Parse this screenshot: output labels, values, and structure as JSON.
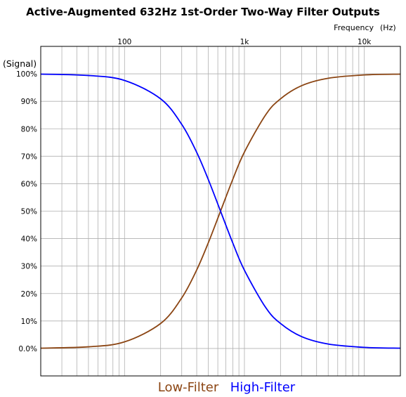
{
  "chart_data": {
    "type": "line",
    "title": "Active-Augmented 632Hz 1st-Order Two-Way Filter Outputs",
    "xlabel": "Frequency",
    "xunit": "(Hz)",
    "ylabel": "(Signal)",
    "xscale": "log",
    "xlim": [
      20,
      20000
    ],
    "ylim": [
      -10,
      110
    ],
    "x_ticks": [
      100,
      1000,
      10000
    ],
    "x_tick_labels": [
      "100",
      "1k",
      "10k"
    ],
    "y_ticks": [
      0,
      10,
      20,
      30,
      40,
      50,
      60,
      70,
      80,
      90,
      100
    ],
    "y_tick_labels": [
      "0.0%",
      "10%",
      "20%",
      "30%",
      "40%",
      "50%",
      "60%",
      "70%",
      "80%",
      "90%",
      "100%"
    ],
    "grid": true,
    "legend_position": "bottom-center",
    "x": [
      20,
      50,
      100,
      200,
      300,
      400,
      500,
      632,
      800,
      1000,
      1500,
      2000,
      3000,
      5000,
      10000,
      20000
    ],
    "series": [
      {
        "name": "Low-Filter",
        "color": "#8B4513",
        "values": [
          0.1,
          0.6,
          2.4,
          9.1,
          18.4,
          28.6,
          38.5,
          50.0,
          61.6,
          71.5,
          85.0,
          90.9,
          95.7,
          98.4,
          99.6,
          99.9
        ]
      },
      {
        "name": "High-Filter",
        "color": "#0000FF",
        "values": [
          99.9,
          99.4,
          97.6,
          90.9,
          81.6,
          71.4,
          61.5,
          50.0,
          38.4,
          28.5,
          15.0,
          9.1,
          4.3,
          1.6,
          0.4,
          0.1
        ]
      }
    ]
  }
}
